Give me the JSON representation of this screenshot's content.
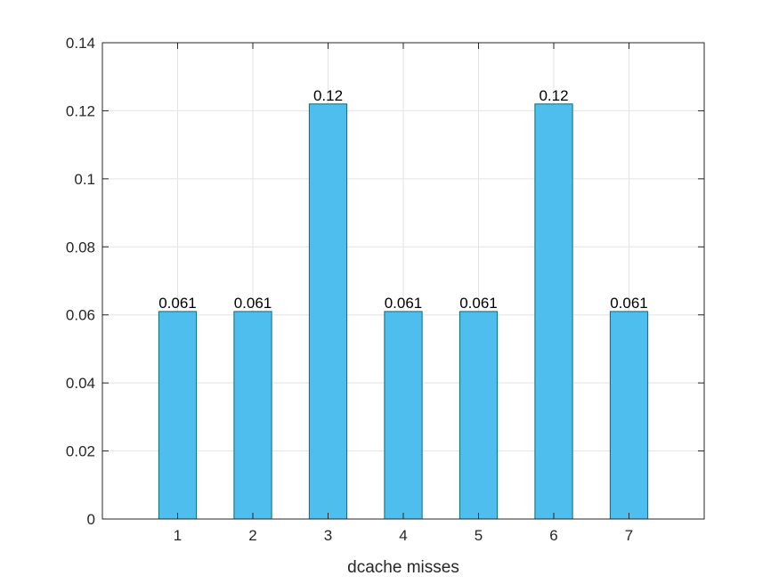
{
  "chart_data": {
    "type": "bar",
    "title": "",
    "xlabel": "dcache misses",
    "ylabel": "",
    "categories": [
      "1",
      "2",
      "3",
      "4",
      "5",
      "6",
      "7"
    ],
    "values": [
      0.061,
      0.061,
      0.122,
      0.061,
      0.061,
      0.122,
      0.061
    ],
    "data_labels": [
      "0.061",
      "0.061",
      "0.12",
      "0.061",
      "0.061",
      "0.12",
      "0.061"
    ],
    "xlim": [
      0,
      8
    ],
    "ylim": [
      0,
      0.14
    ],
    "yticks": [
      "0",
      "0.02",
      "0.04",
      "0.06",
      "0.08",
      "0.1",
      "0.12",
      "0.14"
    ],
    "grid": true,
    "bar_color": "#4DBEEE",
    "bar_edge_color": "#0B6E6E",
    "grid_color": "#E3E3E3",
    "axis_color": "#262626"
  }
}
